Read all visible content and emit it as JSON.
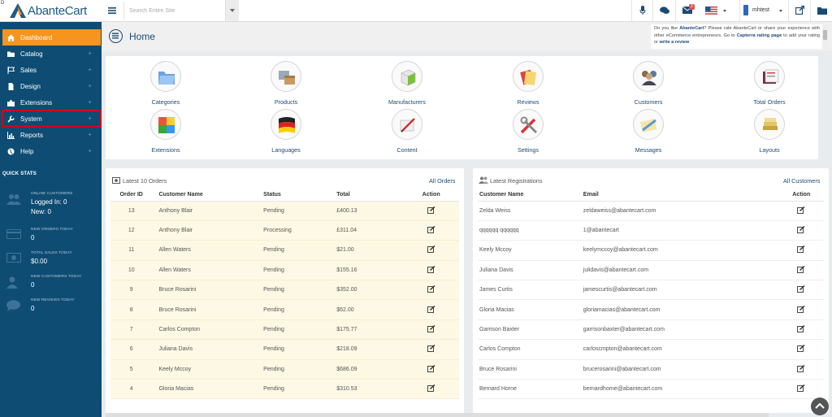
{
  "brand": {
    "name": "AbanteCart",
    "corner": "D"
  },
  "sidebar": {
    "items": [
      {
        "label": "Dashboard",
        "icon": "home-icon",
        "active": true,
        "plus": ""
      },
      {
        "label": "Catalog",
        "icon": "folder-icon",
        "plus": "+"
      },
      {
        "label": "Sales",
        "icon": "flag-icon",
        "plus": "+"
      },
      {
        "label": "Design",
        "icon": "file-icon",
        "plus": "+"
      },
      {
        "label": "Extensions",
        "icon": "puzzle-icon",
        "plus": "+"
      },
      {
        "label": "System",
        "icon": "wrench-icon",
        "plus": "+",
        "highlighted": true
      },
      {
        "label": "Reports",
        "icon": "bar-chart-icon",
        "plus": "+"
      },
      {
        "label": "Help",
        "icon": "globe-icon",
        "plus": "+"
      }
    ]
  },
  "quick_stats": {
    "title": "QUICK STATS",
    "items": [
      {
        "label": "ONLINE CUSTOMERS",
        "line1": "Logged In: 0",
        "line2": "New: 0",
        "icon": "users-icon"
      },
      {
        "label": "NEW ORDERS TODAY",
        "line1": "0",
        "icon": "credit-card-icon"
      },
      {
        "label": "TOTAL SALES TODAY",
        "line1": "$0.00",
        "icon": "money-icon"
      },
      {
        "label": "NEW CUSTOMERS TODAY",
        "line1": "0",
        "icon": "user-icon"
      },
      {
        "label": "NEW REVIEWS TODAY",
        "line1": "0",
        "icon": "comment-icon"
      }
    ]
  },
  "topbar": {
    "search_placeholder": "Search Entire Site",
    "notification_count": "3",
    "username": "mhtest"
  },
  "page": {
    "title": "Home"
  },
  "promo": {
    "p1": "Do you like ",
    "brand": "AbanteCart",
    "p2": "? Please rate AbanteCart or share your experience with other eCommerce entrepreneurs. Go to ",
    "link1": "Capterra rating page",
    "p3": " to add your rating or ",
    "link2": "write a review"
  },
  "quick_icons": [
    {
      "label": "Categories",
      "icon": "categories-icon"
    },
    {
      "label": "Products",
      "icon": "products-icon"
    },
    {
      "label": "Manufacturers",
      "icon": "manufacturers-icon"
    },
    {
      "label": "Reviews",
      "icon": "reviews-icon"
    },
    {
      "label": "Customers",
      "icon": "customers-icon"
    },
    {
      "label": "Total Orders",
      "icon": "total-orders-icon"
    },
    {
      "label": "Extensions",
      "icon": "extensions-icon"
    },
    {
      "label": "Languages",
      "icon": "languages-icon"
    },
    {
      "label": "Content",
      "icon": "content-icon"
    },
    {
      "label": "Settings",
      "icon": "settings-icon"
    },
    {
      "label": "Messages",
      "icon": "messages-icon"
    },
    {
      "label": "Layouts",
      "icon": "layouts-icon"
    }
  ],
  "orders": {
    "title": "Latest 10 Orders",
    "link": "All Orders",
    "headers": [
      "Order ID",
      "Customer Name",
      "Status",
      "Total",
      "Action"
    ],
    "rows": [
      [
        "13",
        "Anthony Blair",
        "Pending",
        "£400.13"
      ],
      [
        "12",
        "Anthony Blair",
        "Processing",
        "£311.04"
      ],
      [
        "11",
        "Allen Waters",
        "Pending",
        "$21.00"
      ],
      [
        "10",
        "Allen Waters",
        "Pending",
        "$155.16"
      ],
      [
        "9",
        "Bruce Rosarini",
        "Pending",
        "$352.00"
      ],
      [
        "8",
        "Bruce Rosarini",
        "Pending",
        "$62.00"
      ],
      [
        "7",
        "Carlos Compton",
        "Pending",
        "$175.77"
      ],
      [
        "6",
        "Juliana Davis",
        "Pending",
        "$218.09"
      ],
      [
        "5",
        "Keely Mccoy",
        "Pending",
        "$686.09"
      ],
      [
        "4",
        "Gloria Macias",
        "Pending",
        "$310.53"
      ]
    ]
  },
  "registrations": {
    "title": "Latest Registrations",
    "link": "All Customers",
    "headers": [
      "Customer Name",
      "Email",
      "Action"
    ],
    "rows": [
      [
        "Zelda Weiss",
        "zeldaweiss@abantecart.com"
      ],
      [
        "qqqqqq qqqqqq",
        "1@abantecart"
      ],
      [
        "Keely Mccoy",
        "keelymccoy@abantecart.com"
      ],
      [
        "Juliana Davis",
        "julidavis@abantecart.com"
      ],
      [
        "James Curtis",
        "jamescurtis@abantecart.com"
      ],
      [
        "Gloria Macias",
        "gloriamacias@abantecart.com"
      ],
      [
        "Garrison Baxter",
        "garrisonbaxter@abantecart.com"
      ],
      [
        "Carlos Compton",
        "carloscmpton@abantecart.com"
      ],
      [
        "Bruce Rosarini",
        "brucerosarini@abantecart.com"
      ],
      [
        "Bernard Horne",
        "bernardhorne@abantecart.com"
      ]
    ]
  },
  "colors": {
    "sidebar": "#0e4c73",
    "accent": "#f7941d",
    "link": "#1c4a75",
    "highlight": "#d0021b"
  }
}
